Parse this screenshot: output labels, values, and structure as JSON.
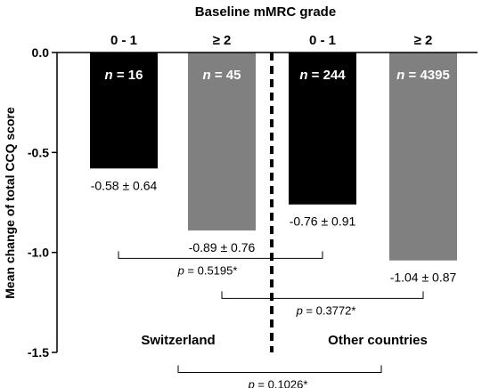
{
  "chart_data": {
    "type": "bar",
    "title": "Baseline mMRC grade",
    "ylabel": "Mean change of total CCQ score",
    "ylim": [
      -1.5,
      0.0
    ],
    "yticks": [
      "0.0",
      "-0.5",
      "-1.0",
      "-1.5"
    ],
    "ytick_values": [
      0.0,
      -0.5,
      -1.0,
      -1.5
    ],
    "grid": false,
    "categories": [
      "0 - 1",
      "≥ 2",
      "0 - 1",
      "≥ 2"
    ],
    "groups": [
      {
        "label": "Switzerland",
        "categories": [
          0,
          1
        ]
      },
      {
        "label": "Other countries",
        "categories": [
          2,
          3
        ]
      }
    ],
    "bars": [
      {
        "category": "0 - 1",
        "value": -0.58,
        "sd": 0.64,
        "n_prefix": "n",
        "n_value": "= 16",
        "value_label": "-0.58 ± 0.64",
        "color": "#000000"
      },
      {
        "category": "≥ 2",
        "value": -0.89,
        "sd": 0.76,
        "n_prefix": "n",
        "n_value": "= 45",
        "value_label": "-0.89 ± 0.76",
        "color": "#808080"
      },
      {
        "category": "0 - 1",
        "value": -0.76,
        "sd": 0.91,
        "n_prefix": "n",
        "n_value": "= 244",
        "value_label": "-0.76 ± 0.91",
        "color": "#000000"
      },
      {
        "category": "≥ 2",
        "value": -1.04,
        "sd": 0.87,
        "n_prefix": "n",
        "n_value": "= 4395",
        "value_label": "-1.04 ± 0.87",
        "color": "#808080"
      }
    ],
    "comparisons": [
      {
        "from": 0,
        "to": 2,
        "level": -1.03,
        "p_prefix": "p",
        "p_value": "= 0.5195*"
      },
      {
        "from": 1,
        "to": 3,
        "level": -1.23,
        "p_prefix": "p",
        "p_value": "= 0.3772*"
      },
      {
        "from": "Switzerland",
        "to": "Other countries",
        "level": -1.6,
        "p_prefix": "p",
        "p_value": "= 0.1026*"
      }
    ]
  }
}
